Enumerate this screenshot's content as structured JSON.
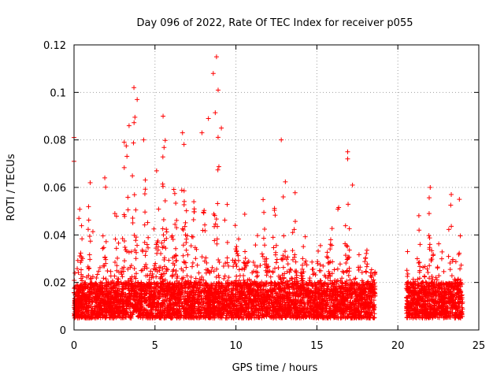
{
  "chart_data": {
    "type": "scatter",
    "title": "Day 096 of 2022, Rate Of TEC Index for receiver p055",
    "xlabel": "GPS time / hours",
    "ylabel": "ROTI / TECUs",
    "xlim": [
      0,
      25
    ],
    "ylim": [
      0,
      0.12
    ],
    "xticks": [
      "0",
      "5",
      "10",
      "15",
      "20",
      "25"
    ],
    "yticks": [
      "0",
      "0.02",
      "0.04",
      "0.06",
      "0.08",
      "0.1",
      "0.12"
    ],
    "xtick_values": [
      0,
      5,
      10,
      15,
      20,
      25
    ],
    "ytick_values": [
      0,
      0.02,
      0.04,
      0.06,
      0.08,
      0.1,
      0.12
    ],
    "grid": true,
    "marker": "+",
    "series_color": "#ff0000",
    "data_gap_hours": [
      18.6,
      20.5
    ],
    "data_ranges_hours": [
      [
        0,
        18.6
      ],
      [
        20.5,
        24.0
      ]
    ],
    "typical_band": [
      0.005,
      0.02
    ],
    "peak_points": [
      {
        "x": 0.0,
        "y": 0.081
      },
      {
        "x": 0.0,
        "y": 0.071
      },
      {
        "x": 0.3,
        "y": 0.047
      },
      {
        "x": 1.0,
        "y": 0.062
      },
      {
        "x": 1.9,
        "y": 0.064
      },
      {
        "x": 3.1,
        "y": 0.079
      },
      {
        "x": 3.4,
        "y": 0.086
      },
      {
        "x": 3.7,
        "y": 0.102
      },
      {
        "x": 3.9,
        "y": 0.097
      },
      {
        "x": 4.3,
        "y": 0.08
      },
      {
        "x": 5.1,
        "y": 0.067
      },
      {
        "x": 5.5,
        "y": 0.09
      },
      {
        "x": 6.7,
        "y": 0.083
      },
      {
        "x": 7.9,
        "y": 0.083
      },
      {
        "x": 8.3,
        "y": 0.089
      },
      {
        "x": 8.8,
        "y": 0.115
      },
      {
        "x": 8.9,
        "y": 0.101
      },
      {
        "x": 8.6,
        "y": 0.108
      },
      {
        "x": 9.1,
        "y": 0.085
      },
      {
        "x": 12.8,
        "y": 0.08
      },
      {
        "x": 16.9,
        "y": 0.075
      },
      {
        "x": 16.9,
        "y": 0.072
      },
      {
        "x": 17.2,
        "y": 0.061
      },
      {
        "x": 21.2,
        "y": 0.03
      },
      {
        "x": 22.0,
        "y": 0.06
      },
      {
        "x": 23.3,
        "y": 0.057
      },
      {
        "x": 23.8,
        "y": 0.055
      }
    ]
  }
}
